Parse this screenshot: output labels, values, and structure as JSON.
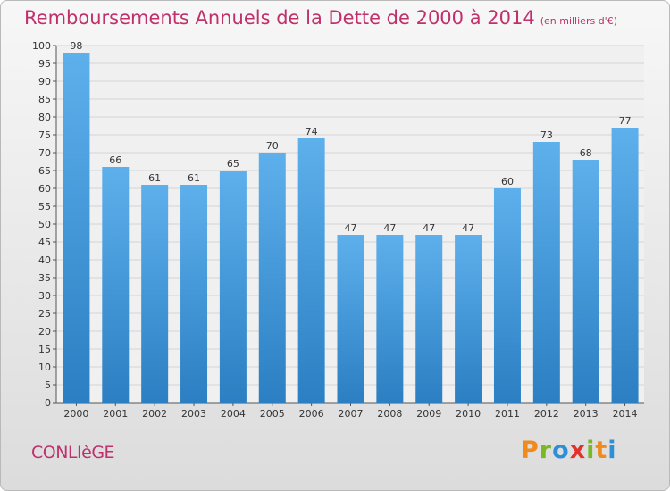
{
  "header": {
    "title": "Remboursements Annuels de la Dette de 2000 à 2014",
    "subtitle": "(en milliers d'€)"
  },
  "footer": {
    "commune": "CONLIèGE",
    "logo": "Proxiti"
  },
  "colors": {
    "title": "#c0306b",
    "bar_light": "#5eb0ec",
    "bar_dark": "#2b7fc2",
    "grid": "#d4d4d4",
    "logo": [
      "#f08a1c",
      "#79b928",
      "#2e8fd6",
      "#e2332b",
      "#79b928",
      "#f08a1c",
      "#2e8fd6"
    ]
  },
  "chart_data": {
    "type": "bar",
    "title": "Remboursements Annuels de la Dette de 2000 à 2014",
    "ylabel": "en milliers d'€",
    "xlabel": "",
    "categories": [
      "2000",
      "2001",
      "2002",
      "2003",
      "2004",
      "2005",
      "2006",
      "2007",
      "2008",
      "2009",
      "2010",
      "2011",
      "2012",
      "2013",
      "2014"
    ],
    "values": [
      98,
      66,
      61,
      61,
      65,
      70,
      74,
      47,
      47,
      47,
      47,
      60,
      73,
      68,
      77
    ],
    "yticks": [
      0,
      5,
      10,
      15,
      20,
      25,
      30,
      35,
      40,
      45,
      50,
      55,
      60,
      65,
      70,
      75,
      80,
      85,
      90,
      95,
      100
    ],
    "ylim": [
      0,
      100
    ],
    "grid": true
  }
}
